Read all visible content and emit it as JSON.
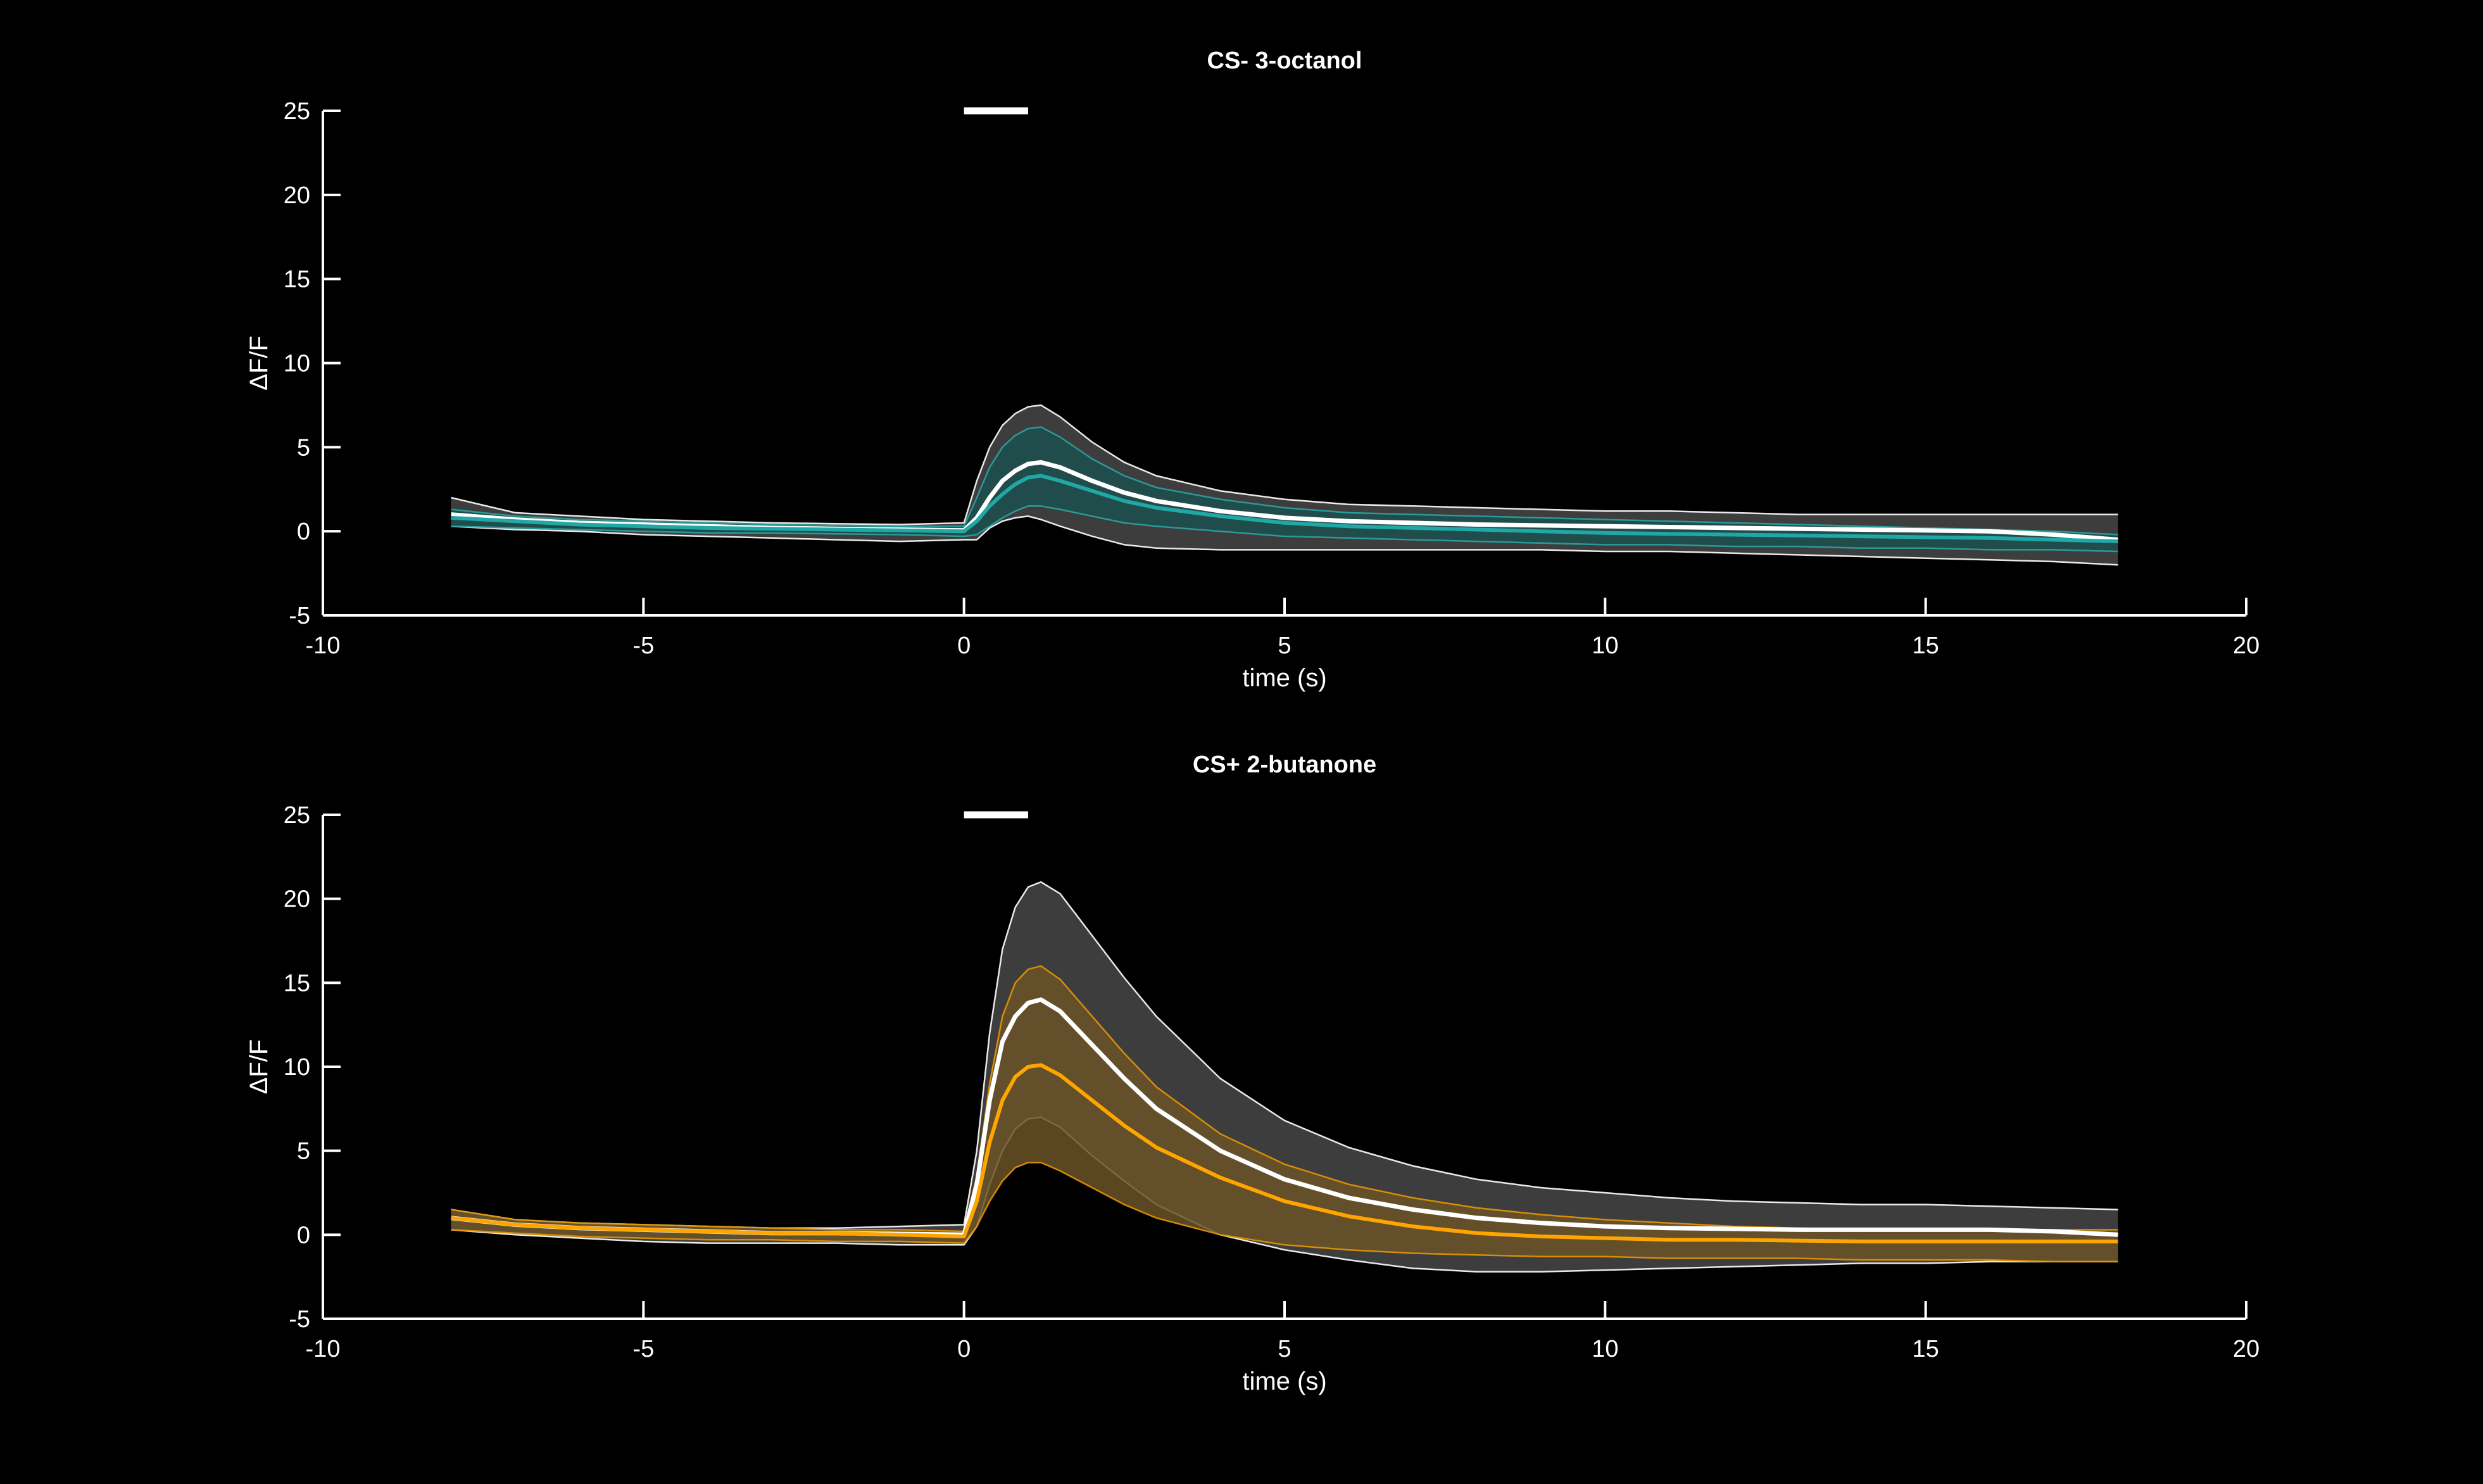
{
  "chart_data": [
    {
      "type": "line",
      "title": "CS-  3-octanol",
      "xlabel": "time (s)",
      "ylabel": "ΔF/F",
      "xlim": [
        -10,
        20
      ],
      "ylim": [
        -5,
        25
      ],
      "xticks": [
        -10,
        -5,
        0,
        5,
        10,
        15,
        20
      ],
      "xtick_labels": [
        "-10",
        "-5",
        "0",
        "5",
        "10",
        "15",
        "20"
      ],
      "yticks": [
        -5,
        0,
        5,
        10,
        15,
        20,
        25
      ],
      "ytick_labels": [
        "-5",
        "0",
        "5",
        "10",
        "15",
        "20",
        "25"
      ],
      "stimulus_bar": {
        "start": 0,
        "end": 1,
        "y": 25
      },
      "x": [
        -8,
        -7,
        -6,
        -5,
        -4,
        -3,
        -2,
        -1,
        0,
        0.2,
        0.4,
        0.6,
        0.8,
        1,
        1.2,
        1.5,
        2,
        2.5,
        3,
        4,
        5,
        6,
        7,
        8,
        9,
        10,
        11,
        12,
        13,
        14,
        15,
        16,
        17,
        18
      ],
      "series": [
        {
          "color": "#ffffff",
          "band_fill": "#3d3d3d",
          "mean": [
            1.0,
            0.7,
            0.5,
            0.4,
            0.3,
            0.2,
            0.15,
            0.1,
            0.05,
            0.8,
            2.0,
            3.0,
            3.6,
            4.0,
            4.1,
            3.8,
            3.0,
            2.3,
            1.8,
            1.2,
            0.8,
            0.6,
            0.5,
            0.4,
            0.35,
            0.3,
            0.25,
            0.2,
            0.15,
            0.1,
            0.05,
            0.0,
            -0.2,
            -0.5
          ],
          "upper": [
            2.0,
            1.1,
            0.9,
            0.7,
            0.6,
            0.5,
            0.45,
            0.4,
            0.5,
            3.0,
            5.0,
            6.3,
            7.0,
            7.4,
            7.5,
            6.8,
            5.3,
            4.1,
            3.3,
            2.4,
            1.9,
            1.6,
            1.5,
            1.4,
            1.3,
            1.2,
            1.2,
            1.1,
            1.0,
            1.0,
            1.0,
            1.0,
            1.0,
            1.0
          ],
          "lower": [
            0.3,
            0.1,
            0.0,
            -0.2,
            -0.3,
            -0.4,
            -0.5,
            -0.6,
            -0.5,
            -0.5,
            0.2,
            0.6,
            0.8,
            0.9,
            0.7,
            0.3,
            -0.3,
            -0.8,
            -1.0,
            -1.1,
            -1.1,
            -1.1,
            -1.1,
            -1.1,
            -1.1,
            -1.2,
            -1.2,
            -1.3,
            -1.4,
            -1.5,
            -1.6,
            -1.7,
            -1.8,
            -2.0
          ]
        },
        {
          "color": "#1fa8a6",
          "band_fill": "#1b4f4d",
          "band_edge": "#2aa3a0",
          "mean": [
            0.8,
            0.6,
            0.4,
            0.3,
            0.2,
            0.15,
            0.1,
            0.05,
            0.0,
            0.6,
            1.5,
            2.2,
            2.8,
            3.2,
            3.3,
            3.0,
            2.4,
            1.8,
            1.4,
            0.9,
            0.5,
            0.3,
            0.2,
            0.1,
            0.0,
            -0.1,
            -0.15,
            -0.2,
            -0.25,
            -0.3,
            -0.35,
            -0.4,
            -0.5,
            -0.6
          ],
          "upper": [
            1.3,
            0.9,
            0.7,
            0.6,
            0.5,
            0.4,
            0.35,
            0.3,
            0.3,
            2.0,
            3.8,
            5.0,
            5.7,
            6.1,
            6.2,
            5.6,
            4.3,
            3.3,
            2.6,
            1.9,
            1.4,
            1.1,
            1.0,
            0.9,
            0.8,
            0.7,
            0.6,
            0.5,
            0.4,
            0.3,
            0.2,
            0.1,
            0.0,
            -0.2
          ],
          "lower": [
            0.3,
            0.2,
            0.1,
            0.0,
            -0.1,
            -0.1,
            -0.15,
            -0.2,
            -0.3,
            -0.2,
            0.3,
            0.8,
            1.2,
            1.5,
            1.5,
            1.3,
            0.9,
            0.5,
            0.3,
            0.0,
            -0.3,
            -0.4,
            -0.5,
            -0.6,
            -0.7,
            -0.8,
            -0.8,
            -0.9,
            -0.9,
            -1.0,
            -1.0,
            -1.1,
            -1.1,
            -1.2
          ]
        }
      ]
    },
    {
      "type": "line",
      "title": "CS+  2-butanone",
      "xlabel": "time (s)",
      "ylabel": "ΔF/F",
      "xlim": [
        -10,
        20
      ],
      "ylim": [
        -5,
        25
      ],
      "xticks": [
        -10,
        -5,
        0,
        5,
        10,
        15,
        20
      ],
      "xtick_labels": [
        "-10",
        "-5",
        "0",
        "5",
        "10",
        "15",
        "20"
      ],
      "yticks": [
        -5,
        0,
        5,
        10,
        15,
        20,
        25
      ],
      "ytick_labels": [
        "-5",
        "0",
        "5",
        "10",
        "15",
        "20",
        "25"
      ],
      "stimulus_bar": {
        "start": 0,
        "end": 1,
        "y": 25
      },
      "x": [
        -8,
        -7,
        -6,
        -5,
        -4,
        -3,
        -2,
        -1,
        0,
        0.2,
        0.4,
        0.6,
        0.8,
        1,
        1.2,
        1.5,
        2,
        2.5,
        3,
        4,
        5,
        6,
        7,
        8,
        9,
        10,
        11,
        12,
        13,
        14,
        15,
        16,
        17,
        18
      ],
      "series": [
        {
          "color": "#ffffff",
          "band_fill": "#3d3d3d",
          "mean": [
            1.0,
            0.6,
            0.4,
            0.3,
            0.2,
            0.1,
            0.1,
            0.05,
            0.0,
            3.0,
            8.0,
            11.5,
            13.0,
            13.8,
            14.0,
            13.3,
            11.3,
            9.3,
            7.5,
            5.0,
            3.3,
            2.2,
            1.5,
            1.0,
            0.7,
            0.5,
            0.4,
            0.35,
            0.3,
            0.3,
            0.3,
            0.3,
            0.2,
            0.0
          ],
          "upper": [
            1.5,
            0.9,
            0.7,
            0.6,
            0.5,
            0.4,
            0.4,
            0.5,
            0.6,
            5.0,
            12.0,
            17.0,
            19.5,
            20.7,
            21.0,
            20.3,
            17.8,
            15.3,
            13.0,
            9.3,
            6.8,
            5.2,
            4.1,
            3.3,
            2.8,
            2.5,
            2.2,
            2.0,
            1.9,
            1.8,
            1.8,
            1.7,
            1.6,
            1.5
          ],
          "lower": [
            0.3,
            0.0,
            -0.2,
            -0.4,
            -0.5,
            -0.5,
            -0.5,
            -0.6,
            -0.6,
            0.5,
            3.0,
            5.0,
            6.3,
            6.9,
            7.0,
            6.4,
            4.7,
            3.2,
            1.8,
            0.0,
            -0.9,
            -1.5,
            -2.0,
            -2.2,
            -2.2,
            -2.1,
            -2.0,
            -1.9,
            -1.8,
            -1.7,
            -1.7,
            -1.6,
            -1.6,
            -1.6
          ]
        },
        {
          "color": "#ffa500",
          "band_fill": "#6a5227",
          "band_edge": "#e69500",
          "mean": [
            1.0,
            0.6,
            0.4,
            0.3,
            0.2,
            0.1,
            0.1,
            0.0,
            -0.1,
            2.0,
            5.5,
            8.0,
            9.4,
            10.0,
            10.1,
            9.5,
            8.0,
            6.5,
            5.2,
            3.4,
            2.0,
            1.1,
            0.5,
            0.1,
            -0.1,
            -0.2,
            -0.3,
            -0.3,
            -0.35,
            -0.4,
            -0.4,
            -0.4,
            -0.4,
            -0.4
          ],
          "upper": [
            1.5,
            0.9,
            0.7,
            0.6,
            0.5,
            0.4,
            0.3,
            0.3,
            0.2,
            3.5,
            9.0,
            13.0,
            15.0,
            15.8,
            16.0,
            15.2,
            13.0,
            10.8,
            8.8,
            6.0,
            4.2,
            3.0,
            2.2,
            1.6,
            1.2,
            0.9,
            0.7,
            0.5,
            0.4,
            0.3,
            0.3,
            0.3,
            0.3,
            0.3
          ],
          "lower": [
            0.3,
            0.1,
            -0.1,
            -0.2,
            -0.3,
            -0.3,
            -0.4,
            -0.4,
            -0.5,
            0.5,
            2.0,
            3.2,
            4.0,
            4.3,
            4.3,
            3.8,
            2.8,
            1.8,
            1.0,
            0.0,
            -0.6,
            -0.9,
            -1.1,
            -1.2,
            -1.3,
            -1.3,
            -1.4,
            -1.4,
            -1.4,
            -1.5,
            -1.5,
            -1.5,
            -1.6,
            -1.6
          ]
        }
      ]
    }
  ]
}
